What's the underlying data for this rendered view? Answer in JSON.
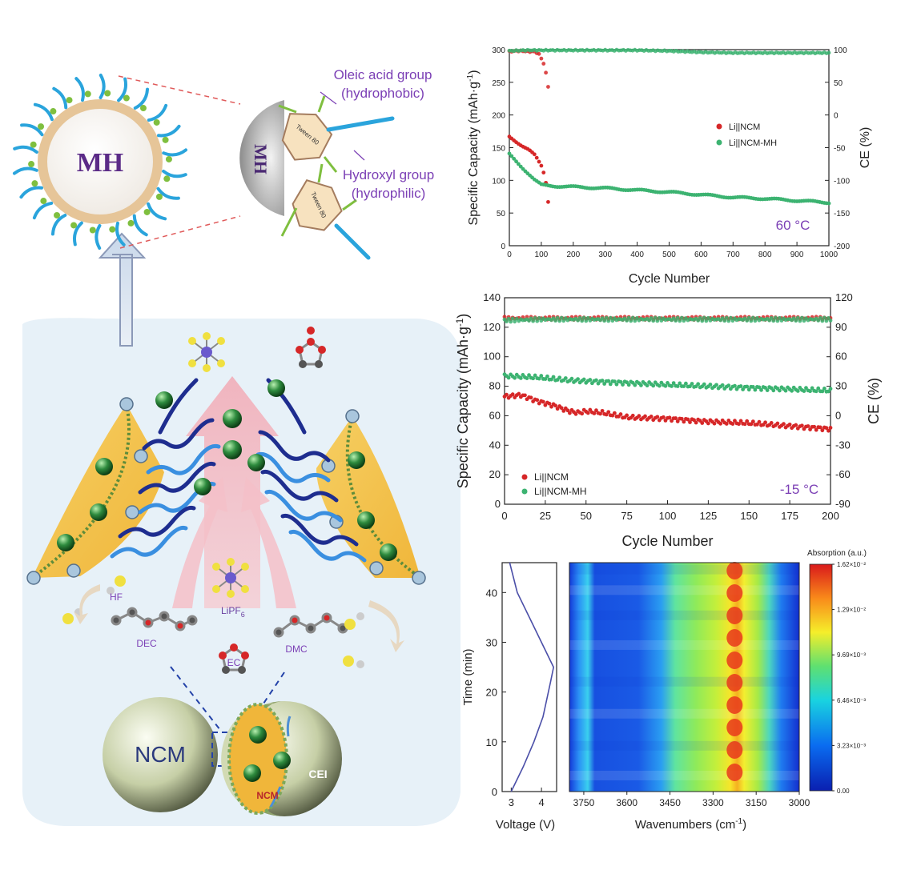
{
  "schematic": {
    "mh_label": "MH",
    "mh_half_label": "MH",
    "tween_label": "Tween 80",
    "oleic_label_1": "Oleic acid group",
    "oleic_label_2": "(hydrophobic)",
    "hydroxyl_label_1": "Hydroxyl group",
    "hydroxyl_label_2": "(hydrophilic)",
    "hf_label": "HF",
    "dec_label": "DEC",
    "ec_label": "EC",
    "dmc_label": "DMC",
    "lipf6_label": "LiPF",
    "lipf6_sub": "6",
    "ncm_label": "NCM",
    "ncm_small_label": "NCM",
    "cei_label": "CEI",
    "colors": {
      "mh_core": "#f4efe9",
      "mh_shell": "#e9c99c",
      "oleic_chain": "#2aa4dc",
      "hydroxyl": "#7fbf3f",
      "text_purple": "#7b3fb5",
      "cei_yellow": "#f3c04c",
      "li_green": "#2e8b3e",
      "arrow_pink": "#f2b3bd",
      "navy": "#1e2d8f",
      "panel_bg": "#e7f1f8"
    }
  },
  "chart_data": [
    {
      "type": "scatter",
      "annotation": "60 °C",
      "xlabel": "Cycle Number",
      "ylabel": "Specific Capacity (mAh·g",
      "ylabel_sup": "-1",
      "ylabel_end": ")",
      "y2label": "CE (%)",
      "xlim": [
        0,
        1000
      ],
      "ylim": [
        0,
        300
      ],
      "y2lim": [
        -200,
        100
      ],
      "xticks": [
        0,
        100,
        200,
        300,
        400,
        500,
        600,
        700,
        800,
        900,
        1000
      ],
      "yticks": [
        0,
        50,
        100,
        150,
        200,
        250,
        300
      ],
      "y2ticks": [
        -200,
        -150,
        -100,
        -50,
        0,
        50,
        100
      ],
      "legend_position": "middle-right",
      "series": [
        {
          "name": "Li||NCM",
          "color": "#d62728",
          "capacity": [
            [
              0,
              167
            ],
            [
              20,
              160
            ],
            [
              40,
              153
            ],
            [
              60,
              147
            ],
            [
              80,
              138
            ],
            [
              100,
              122
            ],
            [
              110,
              108
            ],
            [
              115,
              95
            ],
            [
              120,
              75
            ],
            [
              123,
              60
            ]
          ],
          "ce": [
            [
              0,
              97
            ],
            [
              20,
              98
            ],
            [
              40,
              98
            ],
            [
              60,
              97
            ],
            [
              80,
              97
            ],
            [
              95,
              92
            ],
            [
              105,
              82
            ],
            [
              112,
              70
            ],
            [
              118,
              55
            ],
            [
              122,
              42
            ],
            [
              125,
              0
            ]
          ]
        },
        {
          "name": "Li||NCM-MH",
          "color": "#3cb371",
          "capacity": [
            [
              0,
              140
            ],
            [
              20,
              130
            ],
            [
              40,
              120
            ],
            [
              60,
              110
            ],
            [
              80,
              100
            ],
            [
              100,
              93
            ],
            [
              150,
              91
            ],
            [
              200,
              90
            ],
            [
              300,
              88
            ],
            [
              400,
              85
            ],
            [
              500,
              82
            ],
            [
              600,
              78
            ],
            [
              700,
              74
            ],
            [
              800,
              72
            ],
            [
              900,
              69
            ],
            [
              1000,
              66
            ]
          ],
          "ce": [
            [
              0,
              98
            ],
            [
              50,
              99
            ],
            [
              100,
              99
            ],
            [
              200,
              99
            ],
            [
              300,
              99
            ],
            [
              400,
              99
            ],
            [
              500,
              98
            ],
            [
              600,
              96
            ],
            [
              700,
              95
            ],
            [
              800,
              95
            ],
            [
              900,
              95
            ],
            [
              1000,
              95
            ]
          ]
        }
      ]
    },
    {
      "type": "scatter",
      "annotation": "-15 °C",
      "xlabel": "Cycle Number",
      "ylabel": "Specific Capacity (mAh·g",
      "ylabel_sup": "-1",
      "ylabel_end": ")",
      "y2label": "CE (%)",
      "xlim": [
        0,
        200
      ],
      "ylim": [
        0,
        140
      ],
      "y2lim": [
        -90,
        120
      ],
      "xticks": [
        0,
        25,
        50,
        75,
        100,
        125,
        150,
        175,
        200
      ],
      "yticks": [
        0,
        20,
        40,
        60,
        80,
        100,
        120,
        140
      ],
      "y2ticks": [
        -90,
        -60,
        -30,
        0,
        30,
        60,
        90,
        120
      ],
      "legend_position": "bottom-left",
      "series": [
        {
          "name": "Li||NCM",
          "color": "#d62728",
          "capacity": [
            [
              0,
              73
            ],
            [
              10,
              74
            ],
            [
              20,
              70
            ],
            [
              30,
              67
            ],
            [
              40,
              63
            ],
            [
              45,
              62
            ],
            [
              50,
              63
            ],
            [
              60,
              62
            ],
            [
              75,
              59
            ],
            [
              100,
              58
            ],
            [
              125,
              56
            ],
            [
              150,
              55
            ],
            [
              175,
              53
            ],
            [
              200,
              51
            ]
          ],
          "ce": [
            [
              0,
              99
            ],
            [
              25,
              99
            ],
            [
              50,
              99
            ],
            [
              75,
              99
            ],
            [
              100,
              99
            ],
            [
              125,
              99
            ],
            [
              150,
              99
            ],
            [
              175,
              99
            ],
            [
              200,
              99
            ]
          ]
        },
        {
          "name": "Li||NCM-MH",
          "color": "#3cb371",
          "capacity": [
            [
              0,
              87
            ],
            [
              20,
              86
            ],
            [
              40,
              84
            ],
            [
              60,
              83
            ],
            [
              80,
              82
            ],
            [
              100,
              81
            ],
            [
              125,
              80
            ],
            [
              150,
              79
            ],
            [
              175,
              78
            ],
            [
              200,
              77
            ]
          ],
          "ce": [
            [
              0,
              97
            ],
            [
              25,
              98
            ],
            [
              50,
              98
            ],
            [
              75,
              98
            ],
            [
              100,
              98
            ],
            [
              125,
              98
            ],
            [
              150,
              98
            ],
            [
              175,
              98
            ],
            [
              200,
              98
            ]
          ]
        }
      ]
    },
    {
      "type": "line",
      "ylabel": "Time (min)",
      "xlabel": "Voltage (V)",
      "xlim": [
        2.7,
        4.5
      ],
      "ylim": [
        0,
        46
      ],
      "xticks": [
        3,
        4
      ],
      "yticks": [
        0,
        10,
        20,
        30,
        40
      ],
      "points": [
        [
          3.0,
          0
        ],
        [
          3.4,
          5
        ],
        [
          3.75,
          10
        ],
        [
          4.05,
          15
        ],
        [
          4.3,
          22
        ],
        [
          4.4,
          25
        ],
        [
          4.0,
          30
        ],
        [
          3.6,
          35
        ],
        [
          3.2,
          40
        ],
        [
          2.95,
          46
        ]
      ]
    },
    {
      "type": "heatmap",
      "xlabel": "Wavenumbers (cm",
      "xlabel_sup": "-1",
      "xlabel_end": ")",
      "xlim": [
        3800,
        3000
      ],
      "ylim": [
        0,
        46
      ],
      "xticks": [
        3750,
        3600,
        3450,
        3300,
        3150,
        3000
      ],
      "colorbar_title": "Absorption (a.u.)",
      "colorbar_ticks": [
        "1.62×10⁻²",
        "1.29×10⁻²",
        "9.69×10⁻³",
        "6.46×10⁻³",
        "3.23×10⁻³",
        "0.00"
      ]
    }
  ]
}
